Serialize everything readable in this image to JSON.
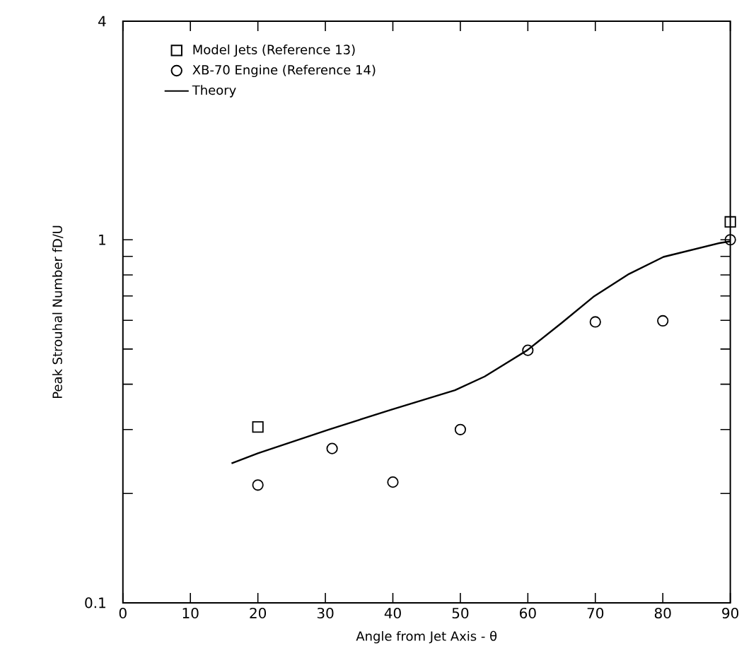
{
  "chart_data": {
    "type": "scatter",
    "xlabel": "Angle from Jet Axis - θ",
    "ylabel": "Peak Strouhal Number  fD/U",
    "log": "y",
    "xlim": [
      0,
      90
    ],
    "ylim": [
      0.1,
      4
    ],
    "xticks": [
      0,
      10,
      20,
      30,
      40,
      50,
      60,
      70,
      80,
      90
    ],
    "yticks": [
      0.1,
      {
        "value": 0.2,
        "label": null
      },
      {
        "value": 0.3,
        "label": null
      },
      {
        "value": 0.4,
        "label": null
      },
      {
        "value": 0.5,
        "label": null
      },
      {
        "value": 0.6,
        "label": null
      },
      {
        "value": 0.7,
        "label": null
      },
      {
        "value": 0.8,
        "label": null
      },
      {
        "value": 0.9,
        "label": null
      },
      1,
      4
    ],
    "grid": false,
    "legend": "top left",
    "series": [
      {
        "name": "Model Jets (Reference 13)",
        "marker": "square",
        "color": "#000000",
        "x": [
          20,
          90
        ],
        "values": [
          0.305,
          1.12
        ]
      },
      {
        "name": "XB-70 Engine (Reference 14)",
        "marker": "circle",
        "color": "#000000",
        "x": [
          20,
          31,
          40,
          50,
          60,
          70,
          80,
          90
        ],
        "values": [
          0.211,
          0.266,
          0.215,
          0.3,
          0.496,
          0.594,
          0.598,
          1.0
        ]
      },
      {
        "name": "Theory",
        "type": "line",
        "marker": "none",
        "line_style": "solid",
        "color": "#000000",
        "x": [
          16.1,
          20,
          30.5,
          39.7,
          49.2,
          53.6,
          59.9,
          65,
          69.7,
          75,
          80.1,
          88.5,
          90
        ],
        "values": [
          0.242,
          0.258,
          0.3,
          0.34,
          0.385,
          0.42,
          0.496,
          0.59,
          0.696,
          0.805,
          0.897,
          0.98,
          0.99
        ]
      }
    ]
  }
}
